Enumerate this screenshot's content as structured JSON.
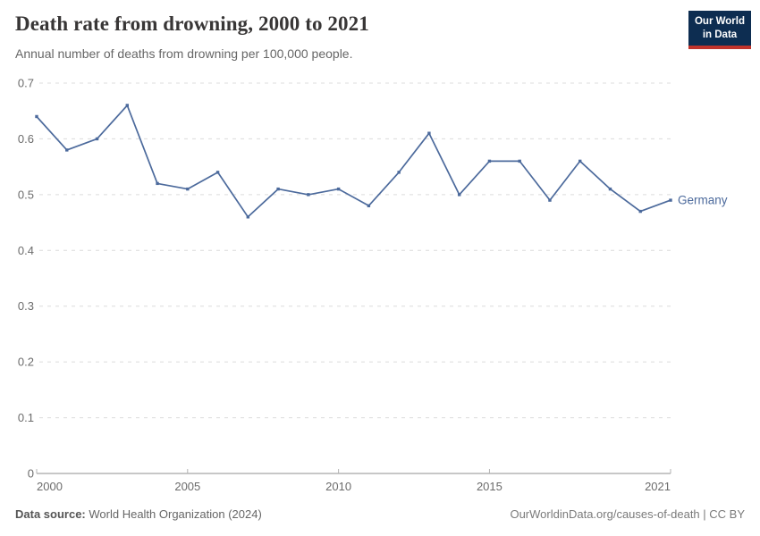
{
  "header": {
    "title": "Death rate from drowning, 2000 to 2021",
    "subtitle": "Annual number of deaths from drowning per 100,000 people.",
    "logo": {
      "line1": "Our World",
      "line2": "in Data"
    }
  },
  "chart_data": {
    "type": "line",
    "title": "Death rate from drowning, 2000 to 2021",
    "xlabel": "",
    "ylabel": "",
    "xlim": [
      2000,
      2021
    ],
    "ylim": [
      0,
      0.7
    ],
    "x_ticks": [
      2000,
      2005,
      2010,
      2015,
      2021
    ],
    "y_ticks": [
      0,
      0.1,
      0.2,
      0.3,
      0.4,
      0.5,
      0.6,
      0.7
    ],
    "grid": "horizontal-dashed",
    "legend_position": "end-of-line-label",
    "series": [
      {
        "name": "Germany",
        "color": "#4c6a9c",
        "x": [
          2000,
          2001,
          2002,
          2003,
          2004,
          2005,
          2006,
          2007,
          2008,
          2009,
          2010,
          2011,
          2012,
          2013,
          2014,
          2015,
          2016,
          2017,
          2018,
          2019,
          2020,
          2021
        ],
        "values": [
          0.64,
          0.58,
          0.6,
          0.66,
          0.52,
          0.51,
          0.54,
          0.46,
          0.51,
          0.5,
          0.51,
          0.48,
          0.54,
          0.61,
          0.5,
          0.56,
          0.56,
          0.49,
          0.56,
          0.51,
          0.47,
          0.49
        ]
      }
    ]
  },
  "footer": {
    "source_label": "Data source:",
    "source_text": "World Health Organization (2024)",
    "link_text": "OurWorldinData.org/causes-of-death | CC BY"
  },
  "colors": {
    "line": "#4c6a9c",
    "title": "#383636",
    "subtitle": "#666666",
    "tick_label": "#6b6b6b",
    "gridline": "#dcdcdc",
    "axis": "#8f8f8f",
    "tick_mark": "#b3b3b3",
    "logo_bg": "#0d2d51",
    "logo_accent": "#c0332b"
  }
}
